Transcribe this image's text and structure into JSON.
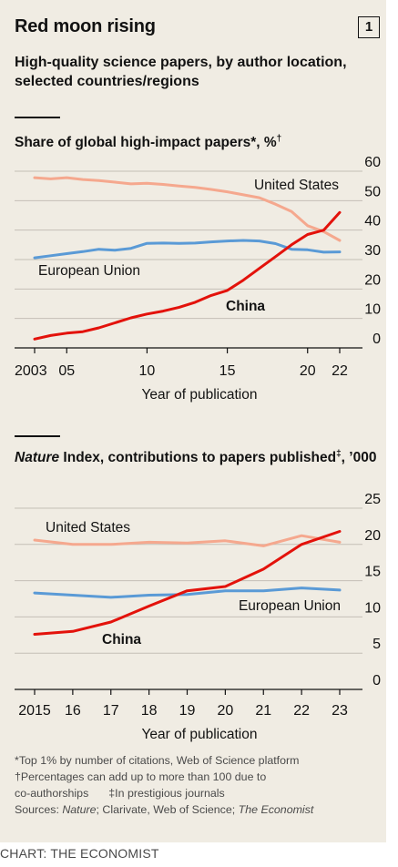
{
  "header": {
    "title": "Red moon rising",
    "chart_number": "1",
    "subtitle": "High-quality science papers, by author location, selected countries/regions"
  },
  "chart_data": [
    {
      "type": "line",
      "title_prefix": "Share of global high-impact papers*, %",
      "title_mark": "†",
      "xlabel": "Year of publication",
      "ylabel": "",
      "xlim": [
        2003,
        2022
      ],
      "ylim": [
        0,
        60
      ],
      "grid": true,
      "x_ticks": [
        2003,
        2005,
        2010,
        2015,
        2020,
        2022
      ],
      "x_tick_labels": [
        "2003",
        "05",
        "10",
        "15",
        "20",
        "22"
      ],
      "y_ticks": [
        0,
        10,
        20,
        30,
        40,
        50,
        60
      ],
      "y_tick_labels": [
        "0",
        "10",
        "20",
        "30",
        "40",
        "50",
        "60"
      ],
      "series": [
        {
          "name": "United States",
          "color": "#f5a88e",
          "label_pos": "above",
          "x": [
            2003,
            2004,
            2005,
            2006,
            2007,
            2008,
            2009,
            2010,
            2011,
            2012,
            2013,
            2014,
            2015,
            2016,
            2017,
            2018,
            2019,
            2020,
            2021,
            2022
          ],
          "values": [
            57.8,
            57.4,
            57.8,
            57.2,
            56.8,
            56.3,
            55.7,
            55.9,
            55.5,
            55.0,
            54.5,
            53.8,
            53.0,
            52.0,
            51.0,
            48.8,
            46.3,
            41.5,
            39.5,
            36.5
          ]
        },
        {
          "name": "European Union",
          "color": "#5a9ad6",
          "label_pos": "below",
          "x": [
            2003,
            2004,
            2005,
            2006,
            2007,
            2008,
            2009,
            2010,
            2011,
            2012,
            2013,
            2014,
            2015,
            2016,
            2017,
            2018,
            2019,
            2020,
            2021,
            2022
          ],
          "values": [
            30.6,
            31.3,
            32.0,
            32.7,
            33.5,
            33.2,
            33.8,
            35.5,
            35.6,
            35.5,
            35.6,
            36.0,
            36.3,
            36.5,
            36.3,
            35.4,
            33.5,
            33.3,
            32.5,
            32.6
          ]
        },
        {
          "name": "China",
          "color": "#e3120b",
          "label_pos": "below",
          "x": [
            2003,
            2004,
            2005,
            2006,
            2007,
            2008,
            2009,
            2010,
            2011,
            2012,
            2013,
            2014,
            2015,
            2016,
            2017,
            2018,
            2019,
            2020,
            2021,
            2022
          ],
          "values": [
            3.0,
            4.2,
            5.0,
            5.5,
            6.8,
            8.5,
            10.2,
            11.5,
            12.5,
            13.8,
            15.5,
            17.8,
            19.5,
            23.0,
            27.0,
            31.0,
            35.0,
            38.5,
            40.0,
            46.0
          ]
        }
      ]
    },
    {
      "type": "line",
      "title_italic": "Nature",
      "title_rest": " Index, contributions to papers published",
      "title_mark": "‡",
      "title_tail": ", ’000",
      "xlabel": "Year of publication",
      "ylabel": "",
      "xlim": [
        2015,
        2023
      ],
      "ylim": [
        0,
        25
      ],
      "grid": true,
      "x_ticks": [
        2015,
        2016,
        2017,
        2018,
        2019,
        2020,
        2021,
        2022,
        2023
      ],
      "x_tick_labels": [
        "2015",
        "16",
        "17",
        "18",
        "19",
        "20",
        "21",
        "22",
        "23"
      ],
      "y_ticks": [
        0,
        5,
        10,
        15,
        20,
        25
      ],
      "y_tick_labels": [
        "0",
        "5",
        "10",
        "15",
        "20",
        "25"
      ],
      "series": [
        {
          "name": "United States",
          "color": "#f5a88e",
          "label_pos": "above",
          "x": [
            2015,
            2016,
            2017,
            2018,
            2019,
            2020,
            2021,
            2022,
            2023
          ],
          "values": [
            20.6,
            20.0,
            20.0,
            20.3,
            20.2,
            20.5,
            19.8,
            21.2,
            20.3
          ]
        },
        {
          "name": "European Union",
          "color": "#5a9ad6",
          "label_pos": "below",
          "x": [
            2015,
            2016,
            2017,
            2018,
            2019,
            2020,
            2021,
            2022,
            2023
          ],
          "values": [
            13.3,
            13.0,
            12.7,
            13.0,
            13.1,
            13.6,
            13.6,
            14.0,
            13.7
          ]
        },
        {
          "name": "China",
          "color": "#e3120b",
          "label_pos": "below",
          "x": [
            2015,
            2016,
            2017,
            2018,
            2019,
            2020,
            2021,
            2022,
            2023
          ],
          "values": [
            7.6,
            8.0,
            9.3,
            11.5,
            13.6,
            14.2,
            16.6,
            20.0,
            21.8
          ]
        }
      ]
    }
  ],
  "notes": {
    "note1": "*Top 1% by number of citations, Web of Science platform",
    "note2": "†Percentages can add up to more than 100 due to",
    "note3a": "co-authorships",
    "note3b": "‡In prestigious journals",
    "src_prefix": "Sources: ",
    "src_nature": "Nature",
    "src_mid": "; Clarivate, Web of Science; ",
    "src_econ": "The Economist"
  },
  "credit": "CHART: THE ECONOMIST"
}
